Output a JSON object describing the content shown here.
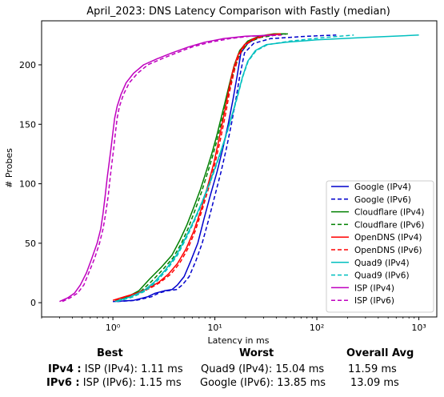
{
  "chart_data": {
    "type": "line",
    "title": "April_2023: DNS Latency Comparison with Fastly (median)",
    "xlabel": "Latency in ms",
    "ylabel": "# Probes",
    "x_scale": "log",
    "xlim": [
      0.2,
      1500
    ],
    "ylim": [
      -12,
      237
    ],
    "x_ticks": [
      1,
      10,
      100,
      1000
    ],
    "x_tick_labels": [
      "10⁰",
      "10¹",
      "10²",
      "10³"
    ],
    "y_ticks": [
      0,
      50,
      100,
      150,
      200
    ],
    "grid": false,
    "legend_position": "lower-right",
    "series": [
      {
        "name": "Google (IPv4)",
        "color": "#0000cc",
        "dash": false,
        "points": [
          [
            1.0,
            1
          ],
          [
            1.6,
            2
          ],
          [
            2.2,
            5
          ],
          [
            2.6,
            8
          ],
          [
            3.2,
            10
          ],
          [
            3.8,
            11
          ],
          [
            4.3,
            15
          ],
          [
            5,
            22
          ],
          [
            5.8,
            35
          ],
          [
            6.8,
            50
          ],
          [
            7.8,
            70
          ],
          [
            9,
            90
          ],
          [
            10.5,
            110
          ],
          [
            12,
            130
          ],
          [
            13.5,
            150
          ],
          [
            15,
            170
          ],
          [
            16.5,
            190
          ],
          [
            18,
            210
          ],
          [
            21,
            218
          ],
          [
            25,
            222
          ],
          [
            32,
            225
          ],
          [
            50,
            226
          ]
        ]
      },
      {
        "name": "Google (IPv6)",
        "color": "#0000cc",
        "dash": true,
        "points": [
          [
            1.1,
            1
          ],
          [
            1.7,
            2
          ],
          [
            2.4,
            5
          ],
          [
            2.8,
            8
          ],
          [
            3.4,
            10
          ],
          [
            4.2,
            11
          ],
          [
            4.8,
            15
          ],
          [
            5.6,
            22
          ],
          [
            6.5,
            35
          ],
          [
            7.5,
            50
          ],
          [
            8.7,
            70
          ],
          [
            10,
            90
          ],
          [
            11.5,
            110
          ],
          [
            13,
            130
          ],
          [
            14.5,
            150
          ],
          [
            16,
            170
          ],
          [
            17.5,
            190
          ],
          [
            19.5,
            210
          ],
          [
            24,
            218
          ],
          [
            35,
            222
          ],
          [
            80,
            224
          ],
          [
            155,
            225
          ]
        ]
      },
      {
        "name": "Cloudflare (IPv4)",
        "color": "#008000",
        "dash": false,
        "points": [
          [
            1.05,
            1
          ],
          [
            1.4,
            5
          ],
          [
            1.8,
            10
          ],
          [
            2.3,
            20
          ],
          [
            3,
            30
          ],
          [
            3.8,
            40
          ],
          [
            4.5,
            52
          ],
          [
            5.3,
            65
          ],
          [
            6.2,
            80
          ],
          [
            7.2,
            95
          ],
          [
            8.2,
            110
          ],
          [
            9.3,
            125
          ],
          [
            10.4,
            140
          ],
          [
            11.5,
            155
          ],
          [
            12.7,
            170
          ],
          [
            14,
            185
          ],
          [
            15.5,
            200
          ],
          [
            17.5,
            212
          ],
          [
            21,
            220
          ],
          [
            27,
            224
          ],
          [
            38,
            226
          ],
          [
            50,
            226
          ]
        ]
      },
      {
        "name": "Cloudflare (IPv6)",
        "color": "#008000",
        "dash": true,
        "points": [
          [
            1.1,
            1
          ],
          [
            1.5,
            5
          ],
          [
            1.9,
            10
          ],
          [
            2.4,
            18
          ],
          [
            3.1,
            28
          ],
          [
            3.9,
            38
          ],
          [
            4.7,
            50
          ],
          [
            5.5,
            63
          ],
          [
            6.4,
            78
          ],
          [
            7.4,
            93
          ],
          [
            8.4,
            108
          ],
          [
            9.5,
            123
          ],
          [
            10.6,
            138
          ],
          [
            11.7,
            153
          ],
          [
            12.9,
            168
          ],
          [
            14.2,
            183
          ],
          [
            15.7,
            198
          ],
          [
            17.8,
            210
          ],
          [
            21.5,
            219
          ],
          [
            28,
            223
          ],
          [
            40,
            225
          ],
          [
            52,
            226
          ]
        ]
      },
      {
        "name": "OpenDNS (IPv4)",
        "color": "#ff0000",
        "dash": false,
        "points": [
          [
            1.0,
            2
          ],
          [
            1.3,
            5
          ],
          [
            1.7,
            8
          ],
          [
            2.2,
            12
          ],
          [
            2.8,
            17
          ],
          [
            3.5,
            24
          ],
          [
            4.3,
            33
          ],
          [
            5.2,
            45
          ],
          [
            6.2,
            60
          ],
          [
            7.3,
            78
          ],
          [
            8.5,
            98
          ],
          [
            9.8,
            118
          ],
          [
            11,
            138
          ],
          [
            12.3,
            158
          ],
          [
            13.6,
            178
          ],
          [
            15,
            195
          ],
          [
            16.8,
            208
          ],
          [
            19.5,
            217
          ],
          [
            24,
            222
          ],
          [
            32,
            225
          ],
          [
            44,
            226
          ]
        ]
      },
      {
        "name": "OpenDNS (IPv6)",
        "color": "#ff0000",
        "dash": true,
        "points": [
          [
            1.05,
            2
          ],
          [
            1.35,
            5
          ],
          [
            1.8,
            8
          ],
          [
            2.3,
            12
          ],
          [
            2.9,
            17
          ],
          [
            3.7,
            24
          ],
          [
            4.5,
            33
          ],
          [
            5.4,
            45
          ],
          [
            6.4,
            60
          ],
          [
            7.5,
            78
          ],
          [
            8.8,
            98
          ],
          [
            10.1,
            118
          ],
          [
            11.4,
            138
          ],
          [
            12.7,
            158
          ],
          [
            14,
            178
          ],
          [
            15.5,
            195
          ],
          [
            17.3,
            208
          ],
          [
            20,
            217
          ],
          [
            25,
            222
          ],
          [
            33,
            225
          ],
          [
            46,
            226
          ]
        ]
      },
      {
        "name": "Quad9 (IPv4)",
        "color": "#00bfbf",
        "dash": false,
        "points": [
          [
            1.05,
            1
          ],
          [
            1.5,
            5
          ],
          [
            2,
            10
          ],
          [
            2.6,
            18
          ],
          [
            3.3,
            28
          ],
          [
            4.2,
            40
          ],
          [
            5.2,
            55
          ],
          [
            6.3,
            70
          ],
          [
            7.5,
            85
          ],
          [
            8.8,
            100
          ],
          [
            10.2,
            115
          ],
          [
            11.7,
            130
          ],
          [
            13.3,
            145
          ],
          [
            15,
            160
          ],
          [
            16.8,
            175
          ],
          [
            18.7,
            190
          ],
          [
            21,
            203
          ],
          [
            25,
            212
          ],
          [
            32,
            217
          ],
          [
            50,
            219
          ],
          [
            100,
            221
          ],
          [
            300,
            223
          ],
          [
            1000,
            225
          ]
        ]
      },
      {
        "name": "Quad9 (IPv6)",
        "color": "#00bfbf",
        "dash": true,
        "points": [
          [
            1.1,
            1
          ],
          [
            1.6,
            5
          ],
          [
            2.1,
            10
          ],
          [
            2.7,
            18
          ],
          [
            3.4,
            28
          ],
          [
            4.3,
            40
          ],
          [
            5.3,
            55
          ],
          [
            6.4,
            70
          ],
          [
            7.6,
            85
          ],
          [
            8.9,
            100
          ],
          [
            10.3,
            115
          ],
          [
            11.8,
            130
          ],
          [
            13.4,
            145
          ],
          [
            15.1,
            160
          ],
          [
            16.9,
            175
          ],
          [
            18.8,
            190
          ],
          [
            21.2,
            203
          ],
          [
            25.5,
            212
          ],
          [
            33,
            217
          ],
          [
            55,
            220
          ],
          [
            120,
            223
          ],
          [
            230,
            225
          ]
        ]
      },
      {
        "name": "ISP (IPv4)",
        "color": "#bf00bf",
        "dash": false,
        "points": [
          [
            0.3,
            1
          ],
          [
            0.36,
            4
          ],
          [
            0.42,
            8
          ],
          [
            0.48,
            15
          ],
          [
            0.55,
            25
          ],
          [
            0.62,
            37
          ],
          [
            0.7,
            50
          ],
          [
            0.76,
            62
          ],
          [
            0.8,
            75
          ],
          [
            0.84,
            90
          ],
          [
            0.88,
            105
          ],
          [
            0.92,
            118
          ],
          [
            0.96,
            130
          ],
          [
            1.0,
            143
          ],
          [
            1.04,
            155
          ],
          [
            1.1,
            165
          ],
          [
            1.2,
            175
          ],
          [
            1.35,
            185
          ],
          [
            1.6,
            193
          ],
          [
            2.0,
            200
          ],
          [
            2.7,
            205
          ],
          [
            3.8,
            210
          ],
          [
            5.5,
            215
          ],
          [
            8,
            219
          ],
          [
            12,
            222
          ],
          [
            20,
            224
          ],
          [
            40,
            225
          ]
        ]
      },
      {
        "name": "ISP (IPv6)",
        "color": "#bf00bf",
        "dash": true,
        "points": [
          [
            0.32,
            1
          ],
          [
            0.38,
            4
          ],
          [
            0.45,
            8
          ],
          [
            0.52,
            15
          ],
          [
            0.58,
            25
          ],
          [
            0.66,
            37
          ],
          [
            0.74,
            50
          ],
          [
            0.8,
            62
          ],
          [
            0.85,
            75
          ],
          [
            0.9,
            90
          ],
          [
            0.94,
            105
          ],
          [
            0.98,
            118
          ],
          [
            1.02,
            130
          ],
          [
            1.06,
            143
          ],
          [
            1.1,
            155
          ],
          [
            1.16,
            165
          ],
          [
            1.27,
            175
          ],
          [
            1.45,
            185
          ],
          [
            1.75,
            193
          ],
          [
            2.2,
            200
          ],
          [
            3.0,
            205
          ],
          [
            4.2,
            210
          ],
          [
            6,
            215
          ],
          [
            9,
            219
          ],
          [
            14,
            222
          ],
          [
            22,
            224
          ],
          [
            45,
            225
          ]
        ]
      }
    ]
  },
  "summary": {
    "headers": {
      "best": "Best",
      "worst": "Worst",
      "overall": "Overall Avg"
    },
    "rows": [
      {
        "label": "IPv4 :",
        "best": "ISP (IPv4): 1.11 ms",
        "worst": "Quad9 (IPv4): 15.04 ms",
        "overall": "11.59 ms"
      },
      {
        "label": "IPv6 :",
        "best": "ISP (IPv6): 1.15 ms",
        "worst": "Google (IPv6): 13.85 ms",
        "overall": "13.09 ms"
      }
    ]
  }
}
